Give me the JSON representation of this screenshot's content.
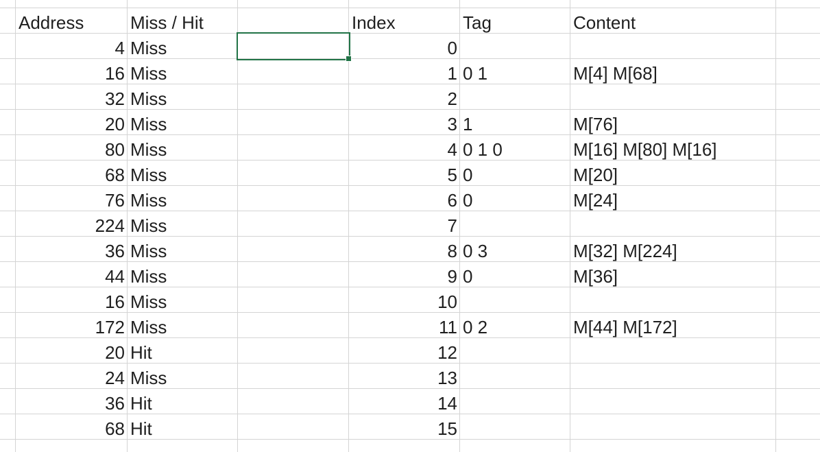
{
  "headers": {
    "address": "Address",
    "miss_hit": "Miss / Hit",
    "index": "Index",
    "tag": "Tag",
    "content": "Content"
  },
  "accesses": [
    {
      "address": "4",
      "result": "Miss"
    },
    {
      "address": "16",
      "result": "Miss"
    },
    {
      "address": "32",
      "result": "Miss"
    },
    {
      "address": "20",
      "result": "Miss"
    },
    {
      "address": "80",
      "result": "Miss"
    },
    {
      "address": "68",
      "result": "Miss"
    },
    {
      "address": "76",
      "result": "Miss"
    },
    {
      "address": "224",
      "result": "Miss"
    },
    {
      "address": "36",
      "result": "Miss"
    },
    {
      "address": "44",
      "result": "Miss"
    },
    {
      "address": "16",
      "result": "Miss"
    },
    {
      "address": "172",
      "result": "Miss"
    },
    {
      "address": "20",
      "result": "Hit"
    },
    {
      "address": "24",
      "result": "Miss"
    },
    {
      "address": "36",
      "result": "Hit"
    },
    {
      "address": "68",
      "result": "Hit"
    }
  ],
  "cache": [
    {
      "index": "0",
      "tag": "",
      "content": ""
    },
    {
      "index": "1",
      "tag": "0 1",
      "content": "M[4] M[68]"
    },
    {
      "index": "2",
      "tag": "",
      "content": ""
    },
    {
      "index": "3",
      "tag": "1",
      "content": "M[76]"
    },
    {
      "index": "4",
      "tag": "0 1 0",
      "content": "M[16] M[80] M[16]"
    },
    {
      "index": "5",
      "tag": "0",
      "content": "M[20]"
    },
    {
      "index": "6",
      "tag": "0",
      "content": "M[24]"
    },
    {
      "index": "7",
      "tag": "",
      "content": ""
    },
    {
      "index": "8",
      "tag": "0 3",
      "content": "M[32] M[224]"
    },
    {
      "index": "9",
      "tag": "0",
      "content": "M[36]"
    },
    {
      "index": "10",
      "tag": "",
      "content": ""
    },
    {
      "index": "11",
      "tag": "0 2",
      "content": "M[44] M[172]"
    },
    {
      "index": "12",
      "tag": "",
      "content": ""
    },
    {
      "index": "13",
      "tag": "",
      "content": ""
    },
    {
      "index": "14",
      "tag": "",
      "content": ""
    },
    {
      "index": "15",
      "tag": "",
      "content": ""
    }
  ],
  "colors": {
    "gridline": "#d4d4d4",
    "selection": "#217346",
    "text": "#1f1f1f"
  }
}
